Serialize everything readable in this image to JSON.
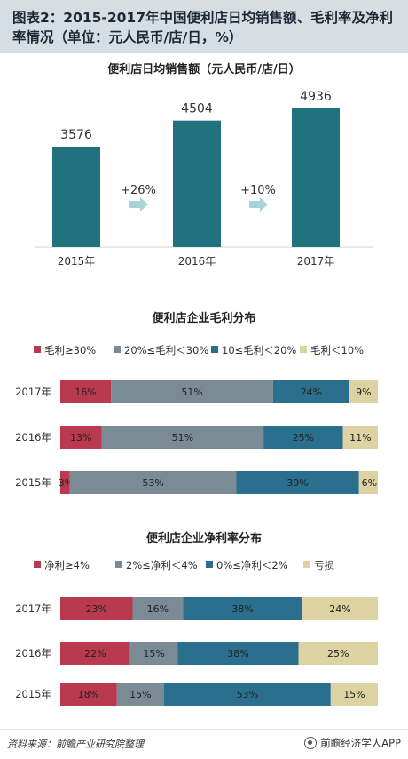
{
  "header": {
    "title": "图表2：2015-2017年中国便利店日均销售额、毛利率及净利率情况（单位：元人民币/店/日，%）"
  },
  "colors": {
    "teal": "#21717f",
    "red": "#b93a4f",
    "gray": "#7a8b95",
    "blue": "#2b6f8f",
    "tan": "#ddd2a1",
    "arrow": "#a9d3db"
  },
  "chart_data": [
    {
      "type": "bar",
      "title": "便利店日均销售额（元人民币/店/日）",
      "categories": [
        "2015年",
        "2016年",
        "2017年"
      ],
      "values": [
        3576,
        4504,
        4936
      ],
      "growth_labels": [
        "+26%",
        "+10%"
      ],
      "ylim": [
        0,
        5000
      ]
    },
    {
      "type": "bar",
      "orientation": "horizontal-stacked",
      "title": "便利店企业毛利分布",
      "categories": [
        "2017年",
        "2016年",
        "2015年"
      ],
      "legend_position": "top",
      "series": [
        {
          "name": "毛利≥30%",
          "color": "#b93a4f",
          "values": [
            16,
            13,
            3
          ]
        },
        {
          "name": "20%≤毛利＜30%",
          "color": "#7a8b95",
          "values": [
            51,
            51,
            53
          ]
        },
        {
          "name": "10≤毛利＜20%",
          "color": "#2b6f8f",
          "values": [
            24,
            25,
            39
          ]
        },
        {
          "name": "毛利＜10%",
          "color": "#ddd2a1",
          "values": [
            9,
            11,
            6
          ]
        }
      ]
    },
    {
      "type": "bar",
      "orientation": "horizontal-stacked",
      "title": "便利店企业净利率分布",
      "categories": [
        "2017年",
        "2016年",
        "2015年"
      ],
      "legend_position": "top",
      "series": [
        {
          "name": "净利≥4%",
          "color": "#b93a4f",
          "values": [
            23,
            22,
            18
          ]
        },
        {
          "name": "2%≤净利＜4%",
          "color": "#7a8b95",
          "values": [
            16,
            15,
            15
          ]
        },
        {
          "name": "0%≤净利＜2%",
          "color": "#2b6f8f",
          "values": [
            38,
            38,
            53
          ]
        },
        {
          "name": "亏损",
          "color": "#ddd2a1",
          "values": [
            24,
            25,
            15
          ]
        }
      ]
    }
  ],
  "footer": {
    "source": "资料来源：前瞻产业研究院整理",
    "brand": "前瞻经济学人APP"
  }
}
